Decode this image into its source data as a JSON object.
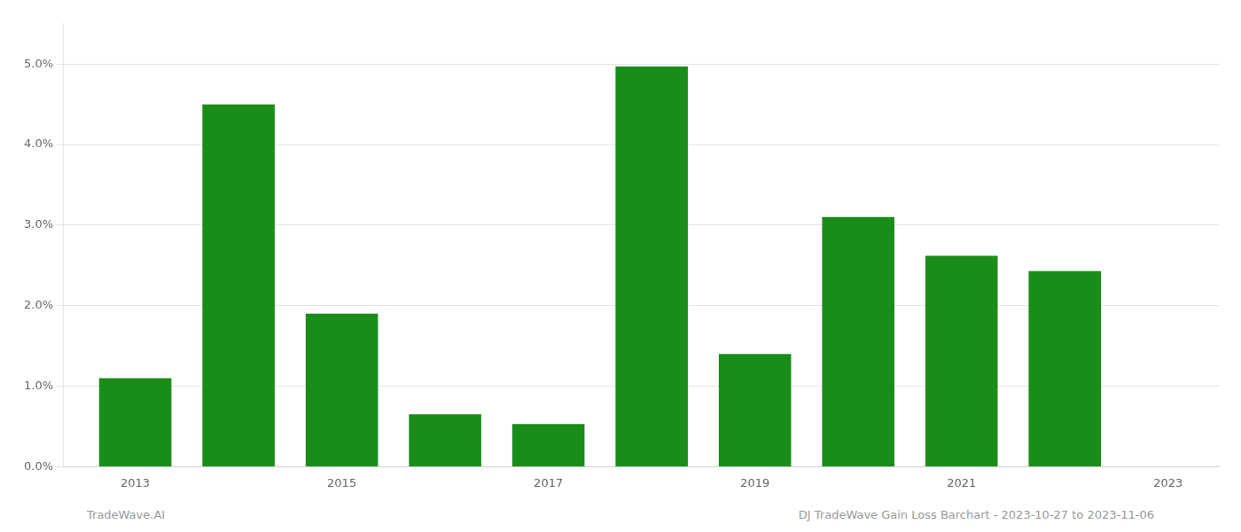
{
  "chart_data": {
    "type": "bar",
    "x": [
      2013,
      2014,
      2015,
      2016,
      2017,
      2018,
      2019,
      2020,
      2021,
      2022
    ],
    "values": [
      0.011,
      0.045,
      0.019,
      0.0065,
      0.0053,
      0.0497,
      0.014,
      0.031,
      0.0262,
      0.0243
    ],
    "color": "#1a8c1a",
    "xlim": [
      2012.3,
      2023.5
    ],
    "xticks": [
      2013,
      2015,
      2017,
      2019,
      2021,
      2023
    ],
    "ylim": [
      0,
      0.055
    ],
    "yticks": [
      {
        "value": 0.0,
        "label": "0.0%"
      },
      {
        "value": 0.01,
        "label": "1.0%"
      },
      {
        "value": 0.02,
        "label": "2.0%"
      },
      {
        "value": 0.03,
        "label": "3.0%"
      },
      {
        "value": 0.04,
        "label": "4.0%"
      },
      {
        "value": 0.05,
        "label": "5.0%"
      }
    ],
    "grid": "y",
    "annotations": [
      "TradeWave.AI",
      "DJ TradeWave Gain Loss Barchart - 2023-10-27 to 2023-11-06"
    ]
  }
}
